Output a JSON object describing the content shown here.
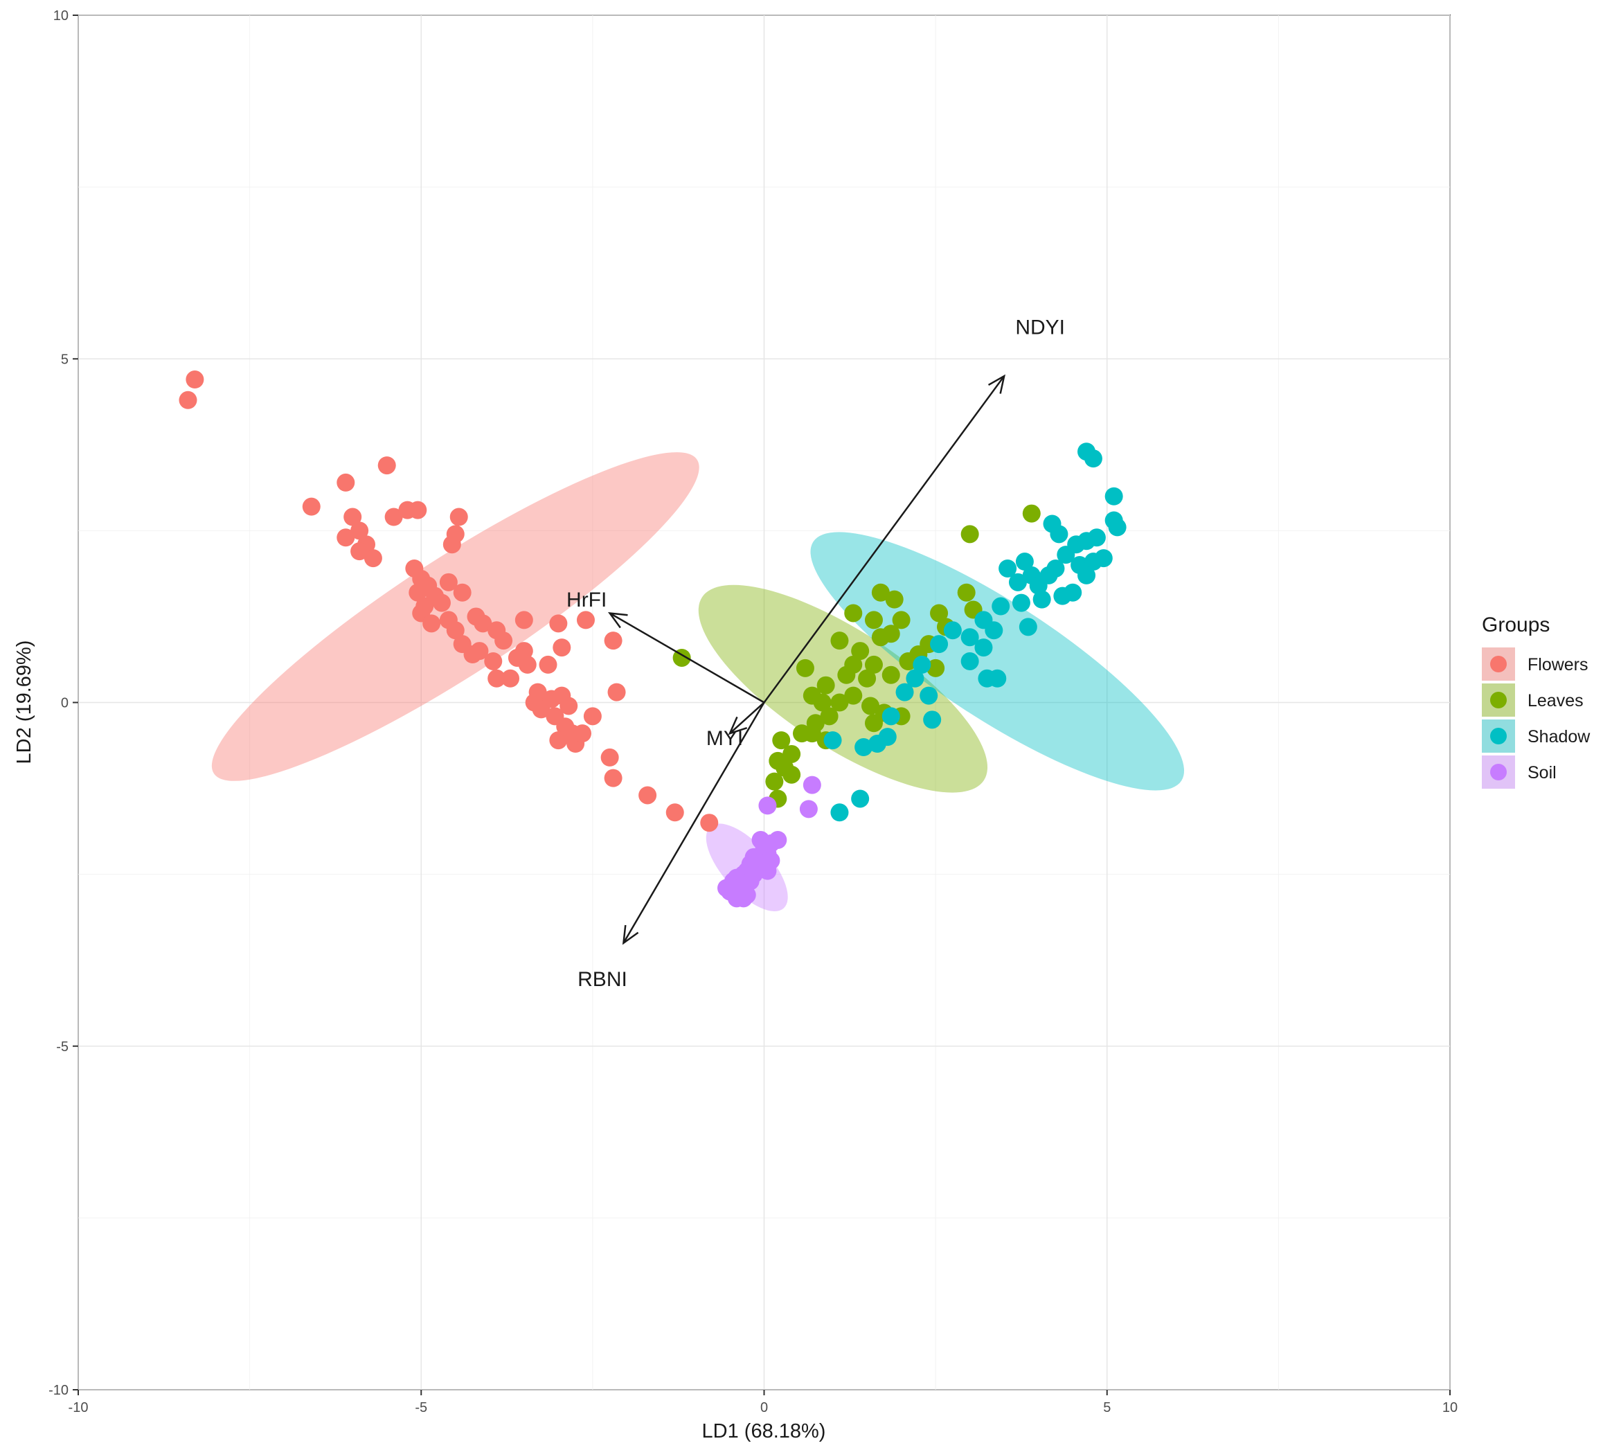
{
  "chart_data": {
    "type": "scatter",
    "title": "",
    "xlabel": "LD1 (68.18%)",
    "ylabel": "LD2 (19.69%)",
    "xlim": [
      -10,
      10
    ],
    "ylim": [
      -10,
      10
    ],
    "x_ticks": [
      "-10",
      "-5",
      "0",
      "5",
      "10"
    ],
    "y_ticks": [
      "-10",
      "-5",
      "0",
      "5",
      "10"
    ],
    "grid": true,
    "legend": {
      "title": "Groups",
      "placement": "right"
    },
    "series": [
      {
        "name": "Flowers",
        "color": "#f8766d",
        "ellipse": {
          "cx": -4.5,
          "cy": 1.25,
          "rx": 4.2,
          "ry": 0.85,
          "angle": -33
        },
        "points": [
          [
            -8.3,
            4.7
          ],
          [
            -8.4,
            4.4
          ],
          [
            -6.6,
            2.85
          ],
          [
            -6.1,
            3.2
          ],
          [
            -6.0,
            2.7
          ],
          [
            -5.9,
            2.5
          ],
          [
            -6.1,
            2.4
          ],
          [
            -5.8,
            2.3
          ],
          [
            -5.7,
            2.1
          ],
          [
            -5.9,
            2.2
          ],
          [
            -5.5,
            3.45
          ],
          [
            -5.4,
            2.7
          ],
          [
            -5.2,
            2.8
          ],
          [
            -5.05,
            2.8
          ],
          [
            -4.45,
            2.7
          ],
          [
            -4.55,
            2.3
          ],
          [
            -4.5,
            2.45
          ],
          [
            -5.1,
            1.95
          ],
          [
            -5.0,
            1.8
          ],
          [
            -4.9,
            1.7
          ],
          [
            -5.05,
            1.6
          ],
          [
            -4.8,
            1.55
          ],
          [
            -4.95,
            1.4
          ],
          [
            -4.7,
            1.45
          ],
          [
            -4.6,
            1.75
          ],
          [
            -4.4,
            1.6
          ],
          [
            -5.0,
            1.3
          ],
          [
            -4.85,
            1.15
          ],
          [
            -4.6,
            1.2
          ],
          [
            -4.5,
            1.05
          ],
          [
            -4.4,
            0.85
          ],
          [
            -4.25,
            0.7
          ],
          [
            -4.15,
            0.75
          ],
          [
            -4.2,
            1.25
          ],
          [
            -4.1,
            1.15
          ],
          [
            -3.9,
            1.05
          ],
          [
            -3.8,
            0.9
          ],
          [
            -3.95,
            0.6
          ],
          [
            -3.9,
            0.35
          ],
          [
            -3.7,
            0.35
          ],
          [
            -3.5,
            1.2
          ],
          [
            -3.5,
            0.75
          ],
          [
            -3.45,
            0.55
          ],
          [
            -3.6,
            0.65
          ],
          [
            -3.15,
            0.55
          ],
          [
            -3.3,
            0.15
          ],
          [
            -3.35,
            0.0
          ],
          [
            -3.25,
            -0.1
          ],
          [
            -3.1,
            0.05
          ],
          [
            -2.95,
            0.1
          ],
          [
            -2.85,
            -0.05
          ],
          [
            -3.05,
            -0.2
          ],
          [
            -2.9,
            -0.35
          ],
          [
            -3.0,
            -0.55
          ],
          [
            -2.8,
            -0.45
          ],
          [
            -2.75,
            -0.6
          ],
          [
            -2.65,
            -0.45
          ],
          [
            -2.5,
            -0.2
          ],
          [
            -3.0,
            1.15
          ],
          [
            -2.6,
            1.2
          ],
          [
            -2.95,
            0.8
          ],
          [
            -2.2,
            0.9
          ],
          [
            -2.15,
            0.15
          ],
          [
            -2.25,
            -0.8
          ],
          [
            -2.2,
            -1.1
          ],
          [
            -1.7,
            -1.35
          ],
          [
            -1.3,
            -1.6
          ],
          [
            -0.8,
            -1.75
          ]
        ]
      },
      {
        "name": "Leaves",
        "color": "#7cae00",
        "ellipse": {
          "cx": 1.15,
          "cy": 0.2,
          "rx": 2.45,
          "ry": 0.85,
          "angle": 33
        },
        "points": [
          [
            -1.2,
            0.65
          ],
          [
            3.0,
            2.45
          ],
          [
            3.9,
            2.75
          ],
          [
            1.3,
            1.3
          ],
          [
            1.7,
            1.6
          ],
          [
            1.9,
            1.5
          ],
          [
            2.0,
            1.2
          ],
          [
            1.6,
            1.2
          ],
          [
            1.1,
            0.9
          ],
          [
            1.7,
            0.95
          ],
          [
            1.85,
            1.0
          ],
          [
            1.4,
            0.75
          ],
          [
            1.6,
            0.55
          ],
          [
            1.3,
            0.55
          ],
          [
            1.5,
            0.35
          ],
          [
            1.85,
            0.4
          ],
          [
            2.1,
            0.6
          ],
          [
            2.25,
            0.7
          ],
          [
            1.2,
            0.4
          ],
          [
            0.9,
            0.25
          ],
          [
            0.6,
            0.5
          ],
          [
            0.7,
            0.1
          ],
          [
            0.85,
            0.0
          ],
          [
            1.1,
            0.0
          ],
          [
            1.3,
            0.1
          ],
          [
            1.55,
            -0.05
          ],
          [
            0.95,
            -0.2
          ],
          [
            0.75,
            -0.3
          ],
          [
            0.7,
            -0.45
          ],
          [
            0.9,
            -0.55
          ],
          [
            0.55,
            -0.45
          ],
          [
            0.25,
            -0.55
          ],
          [
            0.4,
            -0.75
          ],
          [
            0.2,
            -0.85
          ],
          [
            0.4,
            -1.05
          ],
          [
            0.3,
            -0.95
          ],
          [
            0.15,
            -1.15
          ],
          [
            0.2,
            -1.4
          ],
          [
            1.6,
            -0.3
          ],
          [
            1.75,
            -0.15
          ],
          [
            2.0,
            -0.2
          ],
          [
            2.65,
            1.1
          ],
          [
            2.95,
            1.6
          ],
          [
            3.05,
            1.35
          ],
          [
            2.55,
            1.3
          ],
          [
            2.4,
            0.85
          ],
          [
            2.5,
            0.5
          ]
        ]
      },
      {
        "name": "Shadow",
        "color": "#00bfc4",
        "ellipse": {
          "cx": 3.4,
          "cy": 0.6,
          "rx": 3.2,
          "ry": 0.85,
          "angle": 33
        },
        "points": [
          [
            4.7,
            3.65
          ],
          [
            4.8,
            3.55
          ],
          [
            5.1,
            3.0
          ],
          [
            5.1,
            2.65
          ],
          [
            5.15,
            2.55
          ],
          [
            4.2,
            2.6
          ],
          [
            4.3,
            2.45
          ],
          [
            4.55,
            2.3
          ],
          [
            4.7,
            2.35
          ],
          [
            4.85,
            2.4
          ],
          [
            4.4,
            2.15
          ],
          [
            4.25,
            1.95
          ],
          [
            3.8,
            2.05
          ],
          [
            3.55,
            1.95
          ],
          [
            3.7,
            1.75
          ],
          [
            3.9,
            1.85
          ],
          [
            4.0,
            1.7
          ],
          [
            4.15,
            1.85
          ],
          [
            4.6,
            2.0
          ],
          [
            4.8,
            2.05
          ],
          [
            4.95,
            2.1
          ],
          [
            4.7,
            1.85
          ],
          [
            4.5,
            1.6
          ],
          [
            4.35,
            1.55
          ],
          [
            4.05,
            1.5
          ],
          [
            3.85,
            1.1
          ],
          [
            3.45,
            1.4
          ],
          [
            3.75,
            1.45
          ],
          [
            3.2,
            1.2
          ],
          [
            3.35,
            1.05
          ],
          [
            3.0,
            0.95
          ],
          [
            3.2,
            0.8
          ],
          [
            3.0,
            0.6
          ],
          [
            2.75,
            1.05
          ],
          [
            2.55,
            0.85
          ],
          [
            2.3,
            0.55
          ],
          [
            2.2,
            0.35
          ],
          [
            2.05,
            0.15
          ],
          [
            2.4,
            0.1
          ],
          [
            1.85,
            -0.2
          ],
          [
            1.8,
            -0.5
          ],
          [
            1.65,
            -0.6
          ],
          [
            1.45,
            -0.65
          ],
          [
            1.0,
            -0.55
          ],
          [
            2.45,
            -0.25
          ],
          [
            1.4,
            -1.4
          ],
          [
            1.1,
            -1.6
          ],
          [
            3.25,
            0.35
          ],
          [
            3.4,
            0.35
          ]
        ]
      },
      {
        "name": "Soil",
        "color": "#c77cff",
        "ellipse": {
          "cx": -0.25,
          "cy": -2.4,
          "rx": 0.8,
          "ry": 0.35,
          "angle": 48
        },
        "points": [
          [
            0.05,
            -1.5
          ],
          [
            0.7,
            -1.2
          ],
          [
            0.65,
            -1.55
          ],
          [
            0.2,
            -2.0
          ],
          [
            0.1,
            -2.05
          ],
          [
            0.0,
            -2.1
          ],
          [
            0.05,
            -2.2
          ],
          [
            -0.05,
            -2.3
          ],
          [
            0.1,
            -2.3
          ],
          [
            -0.15,
            -2.25
          ],
          [
            -0.2,
            -2.35
          ],
          [
            -0.1,
            -2.4
          ],
          [
            -0.25,
            -2.45
          ],
          [
            -0.3,
            -2.5
          ],
          [
            -0.15,
            -2.5
          ],
          [
            -0.4,
            -2.55
          ],
          [
            -0.45,
            -2.6
          ],
          [
            -0.35,
            -2.7
          ],
          [
            -0.2,
            -2.6
          ],
          [
            -0.5,
            -2.75
          ],
          [
            -0.3,
            -2.85
          ],
          [
            -0.25,
            -2.8
          ],
          [
            -0.4,
            -2.85
          ],
          [
            -0.55,
            -2.7
          ],
          [
            0.05,
            -2.45
          ],
          [
            -0.05,
            -2.0
          ]
        ]
      }
    ],
    "loadings": [
      {
        "label": "NDYI",
        "x": 3.5,
        "y": 4.75
      },
      {
        "label": "HrFI",
        "x": -2.25,
        "y": 1.3
      },
      {
        "label": "MYI",
        "x": -0.5,
        "y": -0.45
      },
      {
        "label": "RBNI",
        "x": -2.05,
        "y": -3.5
      }
    ]
  }
}
